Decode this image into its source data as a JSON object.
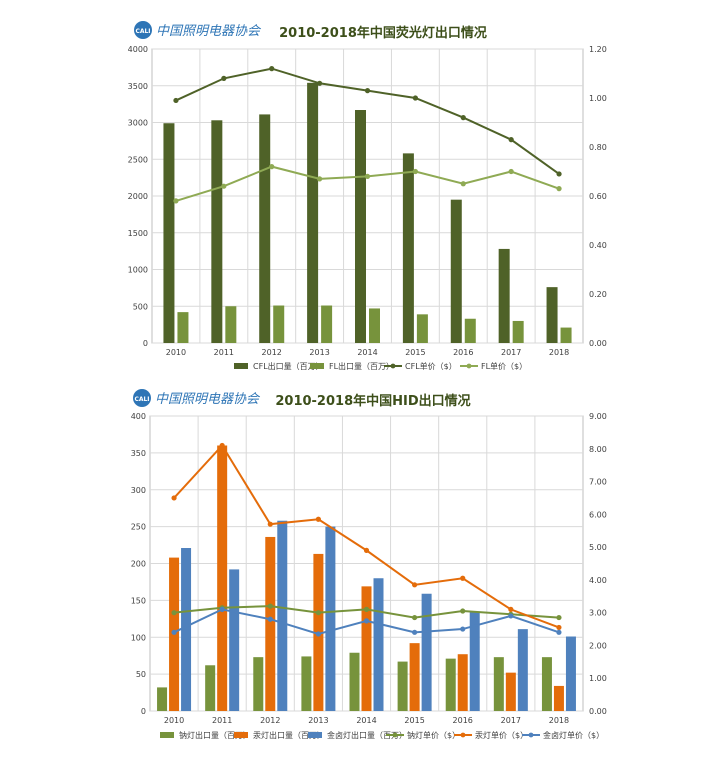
{
  "chart_data": [
    {
      "type": "bar",
      "title": "2010-2018年中国荧光灯出口情况",
      "logo_text": "中国照明电器协会",
      "logo_mark": "CALI",
      "categories": [
        "2010",
        "2011",
        "2012",
        "2013",
        "2014",
        "2015",
        "2016",
        "2017",
        "2018"
      ],
      "y_left_ticks": [
        "0",
        "500",
        "1000",
        "1500",
        "2000",
        "2500",
        "3000",
        "3500",
        "4000"
      ],
      "y_right_ticks": [
        "0.00",
        "0.20",
        "0.40",
        "0.60",
        "0.80",
        "1.00",
        "1.20"
      ],
      "ylim_left": [
        0,
        4000
      ],
      "ylim_right": [
        0,
        1.2
      ],
      "grid": true,
      "legend_position": "bottom",
      "colors": {
        "cfl_bar": "#4f6228",
        "fl_bar": "#77933c",
        "cfl_line": "#4f6228",
        "fl_line": "#8faa54"
      },
      "series": [
        {
          "name": "CFL出口量（百万）",
          "kind": "bar",
          "axis": "left",
          "values": [
            2990,
            3030,
            3110,
            3540,
            3170,
            2580,
            1950,
            1280,
            760
          ]
        },
        {
          "name": "FL出口量（百万）",
          "kind": "bar",
          "axis": "left",
          "values": [
            420,
            500,
            510,
            510,
            470,
            390,
            330,
            300,
            210
          ]
        },
        {
          "name": "CFL单价（$）",
          "kind": "line",
          "axis": "right",
          "values": [
            0.99,
            1.08,
            1.12,
            1.06,
            1.03,
            1.0,
            0.92,
            0.83,
            0.69
          ]
        },
        {
          "name": "FL单价（$）",
          "kind": "line",
          "axis": "right",
          "values": [
            0.58,
            0.64,
            0.72,
            0.67,
            0.68,
            0.7,
            0.65,
            0.7,
            0.63
          ]
        }
      ]
    },
    {
      "type": "bar",
      "title": "2010-2018年中国HID出口情况",
      "logo_text": "中国照明电器协会",
      "logo_mark": "CALI",
      "categories": [
        "2010",
        "2011",
        "2012",
        "2013",
        "2014",
        "2015",
        "2016",
        "2017",
        "2018"
      ],
      "y_left_ticks": [
        "0",
        "50",
        "100",
        "150",
        "200",
        "250",
        "300",
        "350",
        "400"
      ],
      "y_right_ticks": [
        "0.00",
        "1.00",
        "2.00",
        "3.00",
        "4.00",
        "5.00",
        "6.00",
        "7.00",
        "8.00",
        "9.00"
      ],
      "ylim_left": [
        0,
        400
      ],
      "ylim_right": [
        0,
        9
      ],
      "grid": true,
      "legend_position": "bottom",
      "colors": {
        "hpsl": "#77933c",
        "mhl": "#e46c0a",
        "mh_all": "#4f81bd"
      },
      "series": [
        {
          "name": "钠灯出口量（百万）",
          "kind": "bar",
          "axis": "left",
          "values": [
            32,
            62,
            73,
            74,
            79,
            67,
            71,
            73,
            73
          ]
        },
        {
          "name": "汞灯出口量（百万）",
          "kind": "bar",
          "axis": "left",
          "values": [
            208,
            360,
            236,
            213,
            169,
            92,
            77,
            52,
            34
          ]
        },
        {
          "name": "金卤灯出口量（百万）",
          "kind": "bar",
          "axis": "left",
          "values": [
            221,
            192,
            258,
            250,
            180,
            159,
            135,
            111,
            101
          ]
        },
        {
          "name": "钠灯单价（$）",
          "kind": "line",
          "axis": "right",
          "values": [
            3.0,
            3.15,
            3.2,
            3.0,
            3.1,
            2.85,
            3.05,
            2.95,
            2.85
          ]
        },
        {
          "name": "汞灯单价（$）",
          "kind": "line",
          "axis": "right",
          "values": [
            6.5,
            8.1,
            5.7,
            5.85,
            4.9,
            3.85,
            4.05,
            3.1,
            2.55
          ]
        },
        {
          "name": "金卤灯单价（$）",
          "kind": "line",
          "axis": "right",
          "values": [
            2.4,
            3.1,
            2.8,
            2.35,
            2.75,
            2.4,
            2.5,
            2.9,
            2.4
          ]
        }
      ]
    }
  ]
}
